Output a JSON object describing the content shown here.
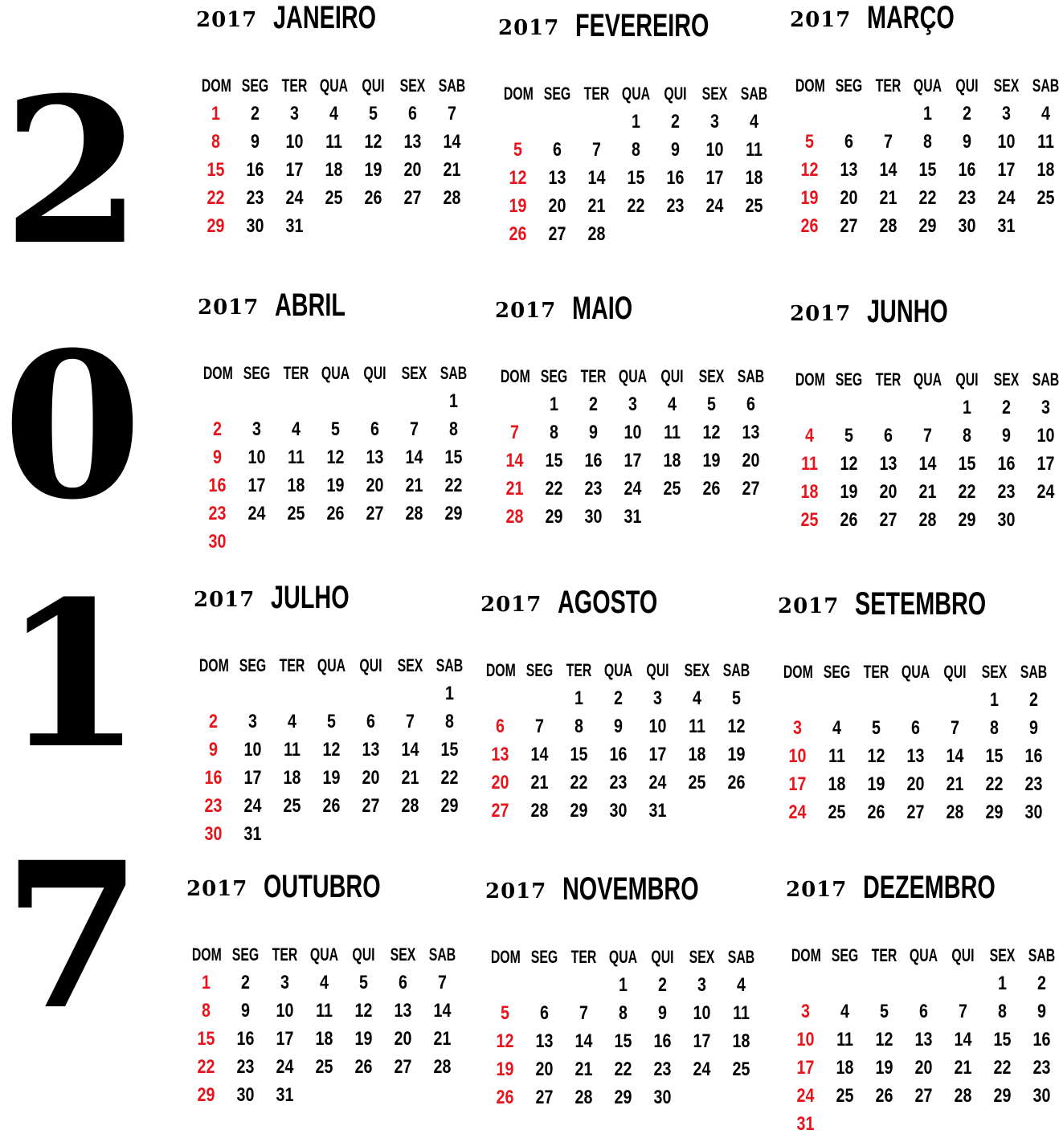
{
  "year_digits": [
    "2",
    "0",
    "1",
    "7"
  ],
  "weekdays": [
    "DOM",
    "SEG",
    "TER",
    "QUA",
    "QUI",
    "SEX",
    "SAB"
  ],
  "colors": {
    "sunday": "#e8141c",
    "text": "#000000",
    "background": "#ffffff"
  },
  "months": [
    {
      "year": "2017",
      "name": "JANEIRO",
      "start": 0,
      "days": 31
    },
    {
      "year": "2017",
      "name": "FEVEREIRO",
      "start": 3,
      "days": 28
    },
    {
      "year": "2017",
      "name": "MARÇO",
      "start": 3,
      "days": 31
    },
    {
      "year": "2017",
      "name": "ABRIL",
      "start": 6,
      "days": 30
    },
    {
      "year": "2017",
      "name": "MAIO",
      "start": 1,
      "days": 31
    },
    {
      "year": "2017",
      "name": "JUNHO",
      "start": 4,
      "days": 30
    },
    {
      "year": "2017",
      "name": "JULHO",
      "start": 6,
      "days": 31
    },
    {
      "year": "2017",
      "name": "AGOSTO",
      "start": 2,
      "days": 31
    },
    {
      "year": "2017",
      "name": "SETEMBRO",
      "start": 5,
      "days": 30
    },
    {
      "year": "2017",
      "name": "OUTUBRO",
      "start": 0,
      "days": 31
    },
    {
      "year": "2017",
      "name": "NOVEMBRO",
      "start": 3,
      "days": 30
    },
    {
      "year": "2017",
      "name": "DEZEMBRO",
      "start": 5,
      "days": 31
    }
  ]
}
